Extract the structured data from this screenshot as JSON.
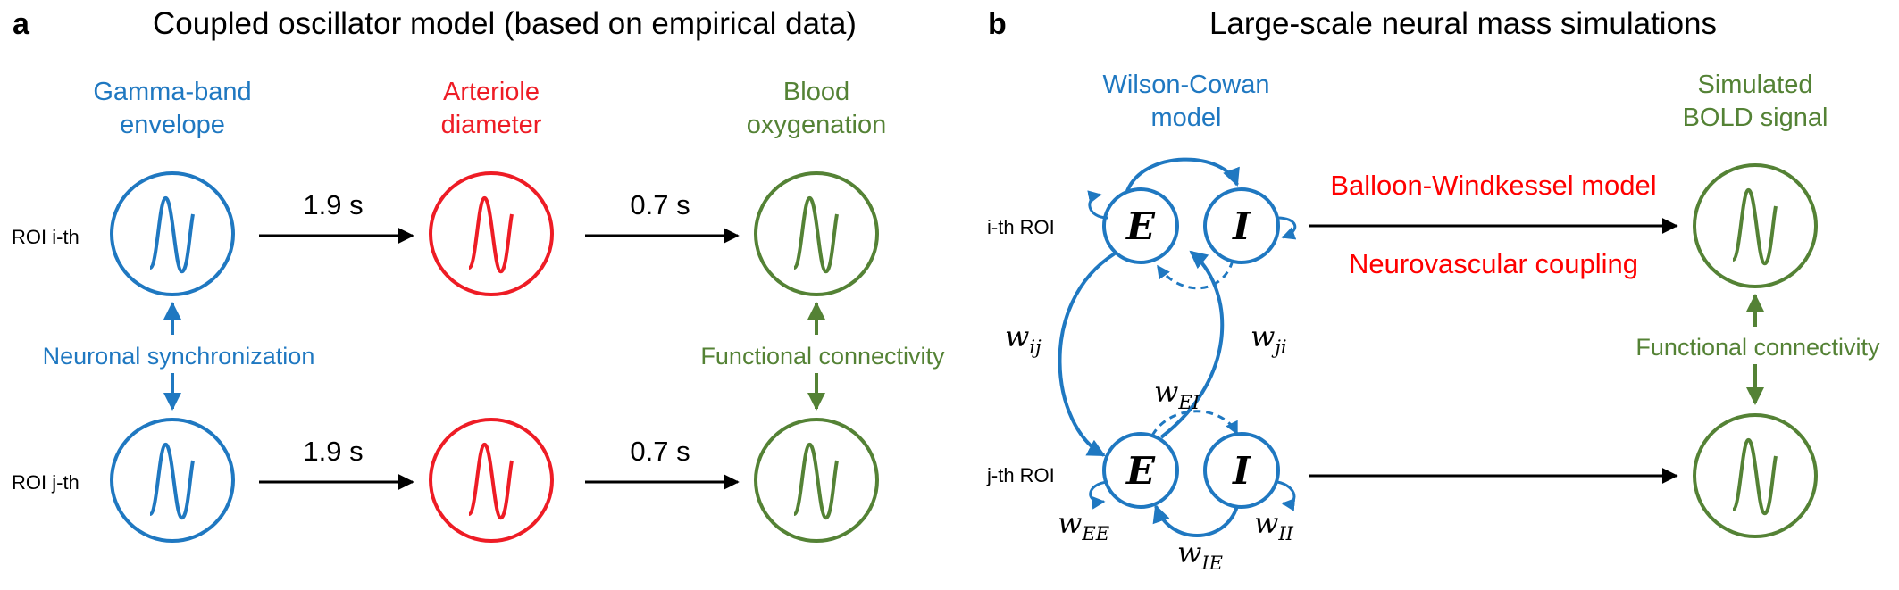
{
  "colors": {
    "blue": "#1f78c1",
    "red": "#ee1c25",
    "green": "#548235",
    "black": "#000000"
  },
  "panel_a": {
    "letter": "a",
    "title": "Coupled oscillator model (based on empirical data)",
    "columns": {
      "gamma": [
        "Gamma-band",
        "envelope"
      ],
      "arteriole": [
        "Arteriole",
        "diameter"
      ],
      "blood": [
        "Blood",
        "oxygenation"
      ]
    },
    "roi_top": "ROI i-th",
    "roi_bottom": "ROI j-th",
    "delay1": "1.9 s",
    "delay2": "0.7 s",
    "neuronal_sync": "Neuronal synchronization",
    "functional_connectivity": "Functional connectivity"
  },
  "panel_b": {
    "letter": "b",
    "title": "Large-scale neural mass simulations",
    "wilson_cowan": [
      "Wilson-Cowan",
      "model"
    ],
    "simulated_bold": [
      "Simulated",
      "BOLD signal"
    ],
    "roi_top": "i-th ROI",
    "roi_bottom": "j-th ROI",
    "excitatory": "E",
    "inhibitory": "I",
    "balloon": "Balloon-Windkessel model",
    "neurovascular": "Neurovascular coupling",
    "functional_connectivity": "Functional connectivity",
    "weights": {
      "w": "w",
      "ij": "ij",
      "ji": "ji",
      "EI": "EI",
      "EE": "EE",
      "IE": "IE",
      "II": "II"
    }
  }
}
